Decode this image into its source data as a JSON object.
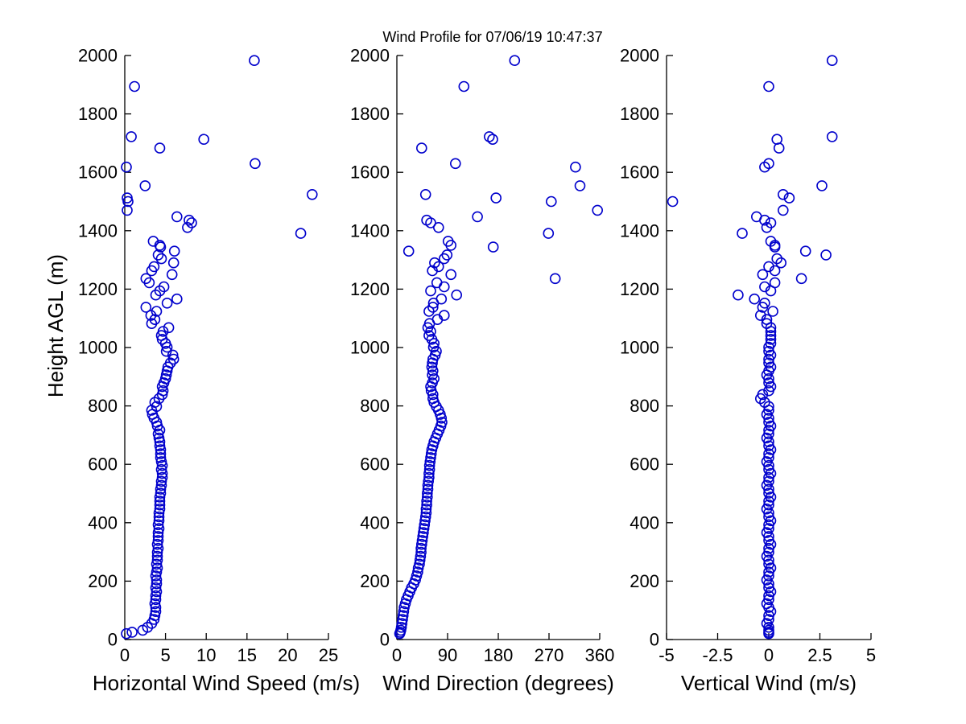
{
  "figure": {
    "title": "Wind Profile for  07/06/19 10:47:37",
    "marker_color": "#0000CC",
    "axis_color": "#000000",
    "background_color": "#ffffff"
  },
  "chart_data": {
    "type": "scatter",
    "title": "Wind Profile for  07/06/19 10:47:37",
    "ylabel": "Height AGL (m)",
    "ylim": [
      0,
      2000
    ],
    "yticks": [
      0,
      200,
      400,
      600,
      800,
      1000,
      1200,
      1400,
      1600,
      1800,
      2000
    ],
    "grid": false,
    "legend": "none",
    "marker": "open-circle",
    "marker_color": "#0000CC",
    "subplots": [
      {
        "xlabel": "Horizontal Wind Speed (m/s)",
        "xlim": [
          0,
          25
        ],
        "xticks": [
          0,
          5,
          10,
          15,
          20,
          25
        ],
        "column": "wind_speed_ms"
      },
      {
        "xlabel": "Wind Direction (degrees)",
        "xlim": [
          0,
          360
        ],
        "xticks": [
          0,
          90,
          180,
          270,
          360
        ],
        "column": "wind_direction_deg"
      },
      {
        "xlabel": "Vertical Wind (m/s)",
        "xlim": [
          -5,
          5
        ],
        "xticks": [
          -5,
          -2.5,
          0,
          2.5,
          5
        ],
        "column": "vertical_wind_ms"
      }
    ],
    "columns": [
      "height_m",
      "wind_speed_ms",
      "wind_direction_deg",
      "vertical_wind_ms"
    ],
    "profile": [
      [
        20,
        0.2,
        5,
        0.0
      ],
      [
        25,
        0.9,
        6,
        0.0
      ],
      [
        32,
        2.2,
        7,
        0.0
      ],
      [
        42,
        2.8,
        8,
        0.0
      ],
      [
        55,
        3.3,
        9,
        -0.1
      ],
      [
        69,
        3.6,
        10,
        0.0
      ],
      [
        82,
        3.7,
        11,
        0.0
      ],
      [
        96,
        3.8,
        12,
        0.1
      ],
      [
        110,
        3.8,
        13,
        0.0
      ],
      [
        123,
        3.7,
        15,
        -0.1
      ],
      [
        137,
        3.8,
        17,
        0.0
      ],
      [
        150,
        3.8,
        20,
        0.0
      ],
      [
        164,
        3.9,
        23,
        0.1
      ],
      [
        177,
        3.8,
        26,
        0.0
      ],
      [
        191,
        3.9,
        30,
        0.0
      ],
      [
        204,
        3.9,
        33,
        -0.1
      ],
      [
        218,
        3.8,
        35,
        0.0
      ],
      [
        231,
        3.9,
        37,
        0.0
      ],
      [
        245,
        4.0,
        38,
        0.1
      ],
      [
        258,
        3.9,
        40,
        0.0
      ],
      [
        272,
        4.0,
        41,
        0.0
      ],
      [
        285,
        4.0,
        42,
        -0.1
      ],
      [
        299,
        4.0,
        43,
        0.0
      ],
      [
        312,
        4.1,
        43,
        0.0
      ],
      [
        326,
        4.0,
        44,
        0.1
      ],
      [
        339,
        4.1,
        45,
        0.0
      ],
      [
        353,
        4.1,
        46,
        0.0
      ],
      [
        366,
        4.1,
        47,
        -0.1
      ],
      [
        380,
        4.2,
        48,
        0.0
      ],
      [
        393,
        4.1,
        49,
        0.0
      ],
      [
        407,
        4.2,
        50,
        0.1
      ],
      [
        420,
        4.2,
        51,
        0.0
      ],
      [
        434,
        4.2,
        52,
        0.0
      ],
      [
        447,
        4.3,
        52,
        -0.1
      ],
      [
        461,
        4.3,
        53,
        0.0
      ],
      [
        474,
        4.3,
        53,
        0.0
      ],
      [
        488,
        4.3,
        54,
        0.1
      ],
      [
        501,
        4.4,
        54,
        0.0
      ],
      [
        515,
        4.4,
        55,
        0.0
      ],
      [
        528,
        4.5,
        55,
        -0.1
      ],
      [
        542,
        4.5,
        56,
        0.0
      ],
      [
        555,
        4.6,
        57,
        0.0
      ],
      [
        569,
        4.6,
        57,
        0.1
      ],
      [
        582,
        4.5,
        58,
        0.0
      ],
      [
        596,
        4.6,
        58,
        0.0
      ],
      [
        609,
        4.5,
        59,
        -0.1
      ],
      [
        623,
        4.4,
        60,
        0.0
      ],
      [
        636,
        4.4,
        61,
        0.0
      ],
      [
        650,
        4.4,
        62,
        0.1
      ],
      [
        663,
        4.3,
        64,
        0.0
      ],
      [
        677,
        4.3,
        66,
        0.0
      ],
      [
        690,
        4.2,
        69,
        -0.1
      ],
      [
        704,
        4.1,
        72,
        0.0
      ],
      [
        717,
        4.3,
        75,
        0.0
      ],
      [
        731,
        4.0,
        78,
        0.1
      ],
      [
        744,
        3.9,
        80,
        0.0
      ],
      [
        758,
        3.6,
        79,
        0.0
      ],
      [
        771,
        3.4,
        77,
        -0.1
      ],
      [
        785,
        3.3,
        74,
        0.0
      ],
      [
        798,
        3.9,
        70,
        0.0
      ],
      [
        812,
        3.7,
        66,
        -0.2
      ],
      [
        825,
        4.2,
        64,
        -0.4
      ],
      [
        839,
        4.6,
        64,
        -0.3
      ],
      [
        852,
        4.7,
        61,
        0.0
      ],
      [
        866,
        4.6,
        60,
        0.1
      ],
      [
        879,
        4.8,
        63,
        0.0
      ],
      [
        893,
        5.0,
        66,
        0.0
      ],
      [
        906,
        5.1,
        63,
        -0.1
      ],
      [
        920,
        5.2,
        64,
        0.0
      ],
      [
        933,
        5.3,
        62,
        0.1
      ],
      [
        947,
        5.6,
        63,
        0.0
      ],
      [
        960,
        6.0,
        64,
        0.0
      ],
      [
        974,
        5.9,
        68,
        0.1
      ],
      [
        987,
        5.1,
        70,
        0.0
      ],
      [
        1001,
        5.2,
        65,
        0.0
      ],
      [
        1014,
        5.0,
        66,
        0.1
      ],
      [
        1028,
        4.6,
        62,
        0.1
      ],
      [
        1041,
        4.5,
        57,
        0.1
      ],
      [
        1055,
        4.7,
        60,
        0.1
      ],
      [
        1068,
        5.4,
        55,
        0.1
      ],
      [
        1082,
        3.3,
        58,
        -0.1
      ],
      [
        1096,
        3.7,
        72,
        -0.1
      ],
      [
        1110,
        3.2,
        84,
        -0.4
      ],
      [
        1124,
        3.9,
        57,
        0.2
      ],
      [
        1138,
        2.6,
        64,
        -0.3
      ],
      [
        1152,
        5.2,
        65,
        -0.2
      ],
      [
        1166,
        6.4,
        79,
        -0.7
      ],
      [
        1180,
        3.8,
        106,
        -1.5
      ],
      [
        1194,
        4.3,
        60,
        0.1
      ],
      [
        1208,
        4.8,
        84,
        -0.2
      ],
      [
        1222,
        3.0,
        71,
        0.3
      ],
      [
        1236,
        2.6,
        281,
        1.6
      ],
      [
        1250,
        5.8,
        96,
        -0.3
      ],
      [
        1263,
        3.3,
        63,
        0.3
      ],
      [
        1277,
        3.6,
        74,
        0.0
      ],
      [
        1290,
        6.0,
        67,
        0.6
      ],
      [
        1304,
        4.5,
        84,
        0.4
      ],
      [
        1317,
        4.1,
        89,
        2.8
      ],
      [
        1330,
        6.1,
        21,
        1.8
      ],
      [
        1344,
        4.4,
        171,
        0.3
      ],
      [
        1350,
        4.3,
        96,
        0.3
      ],
      [
        1364,
        3.5,
        91,
        0.1
      ],
      [
        1391,
        21.6,
        269,
        -1.3
      ],
      [
        1411,
        7.7,
        74,
        -0.1
      ],
      [
        1427,
        8.2,
        60,
        0.1
      ],
      [
        1436,
        7.9,
        53,
        -0.2
      ],
      [
        1448,
        6.4,
        143,
        -0.6
      ],
      [
        1470,
        0.3,
        356,
        0.7
      ],
      [
        1500,
        0.4,
        274,
        -4.7
      ],
      [
        1512,
        0.3,
        176,
        1.0
      ],
      [
        1524,
        23.0,
        51,
        0.7
      ],
      [
        1554,
        2.5,
        325,
        2.6
      ],
      [
        1618,
        0.2,
        317,
        -0.2
      ],
      [
        1630,
        16.0,
        104,
        0.0
      ],
      [
        1683,
        4.3,
        44,
        0.5
      ],
      [
        1713,
        9.7,
        170,
        0.4
      ],
      [
        1722,
        0.8,
        164,
        3.1
      ],
      [
        1894,
        1.2,
        119,
        0.0
      ],
      [
        1983,
        15.9,
        209,
        3.1
      ]
    ]
  }
}
